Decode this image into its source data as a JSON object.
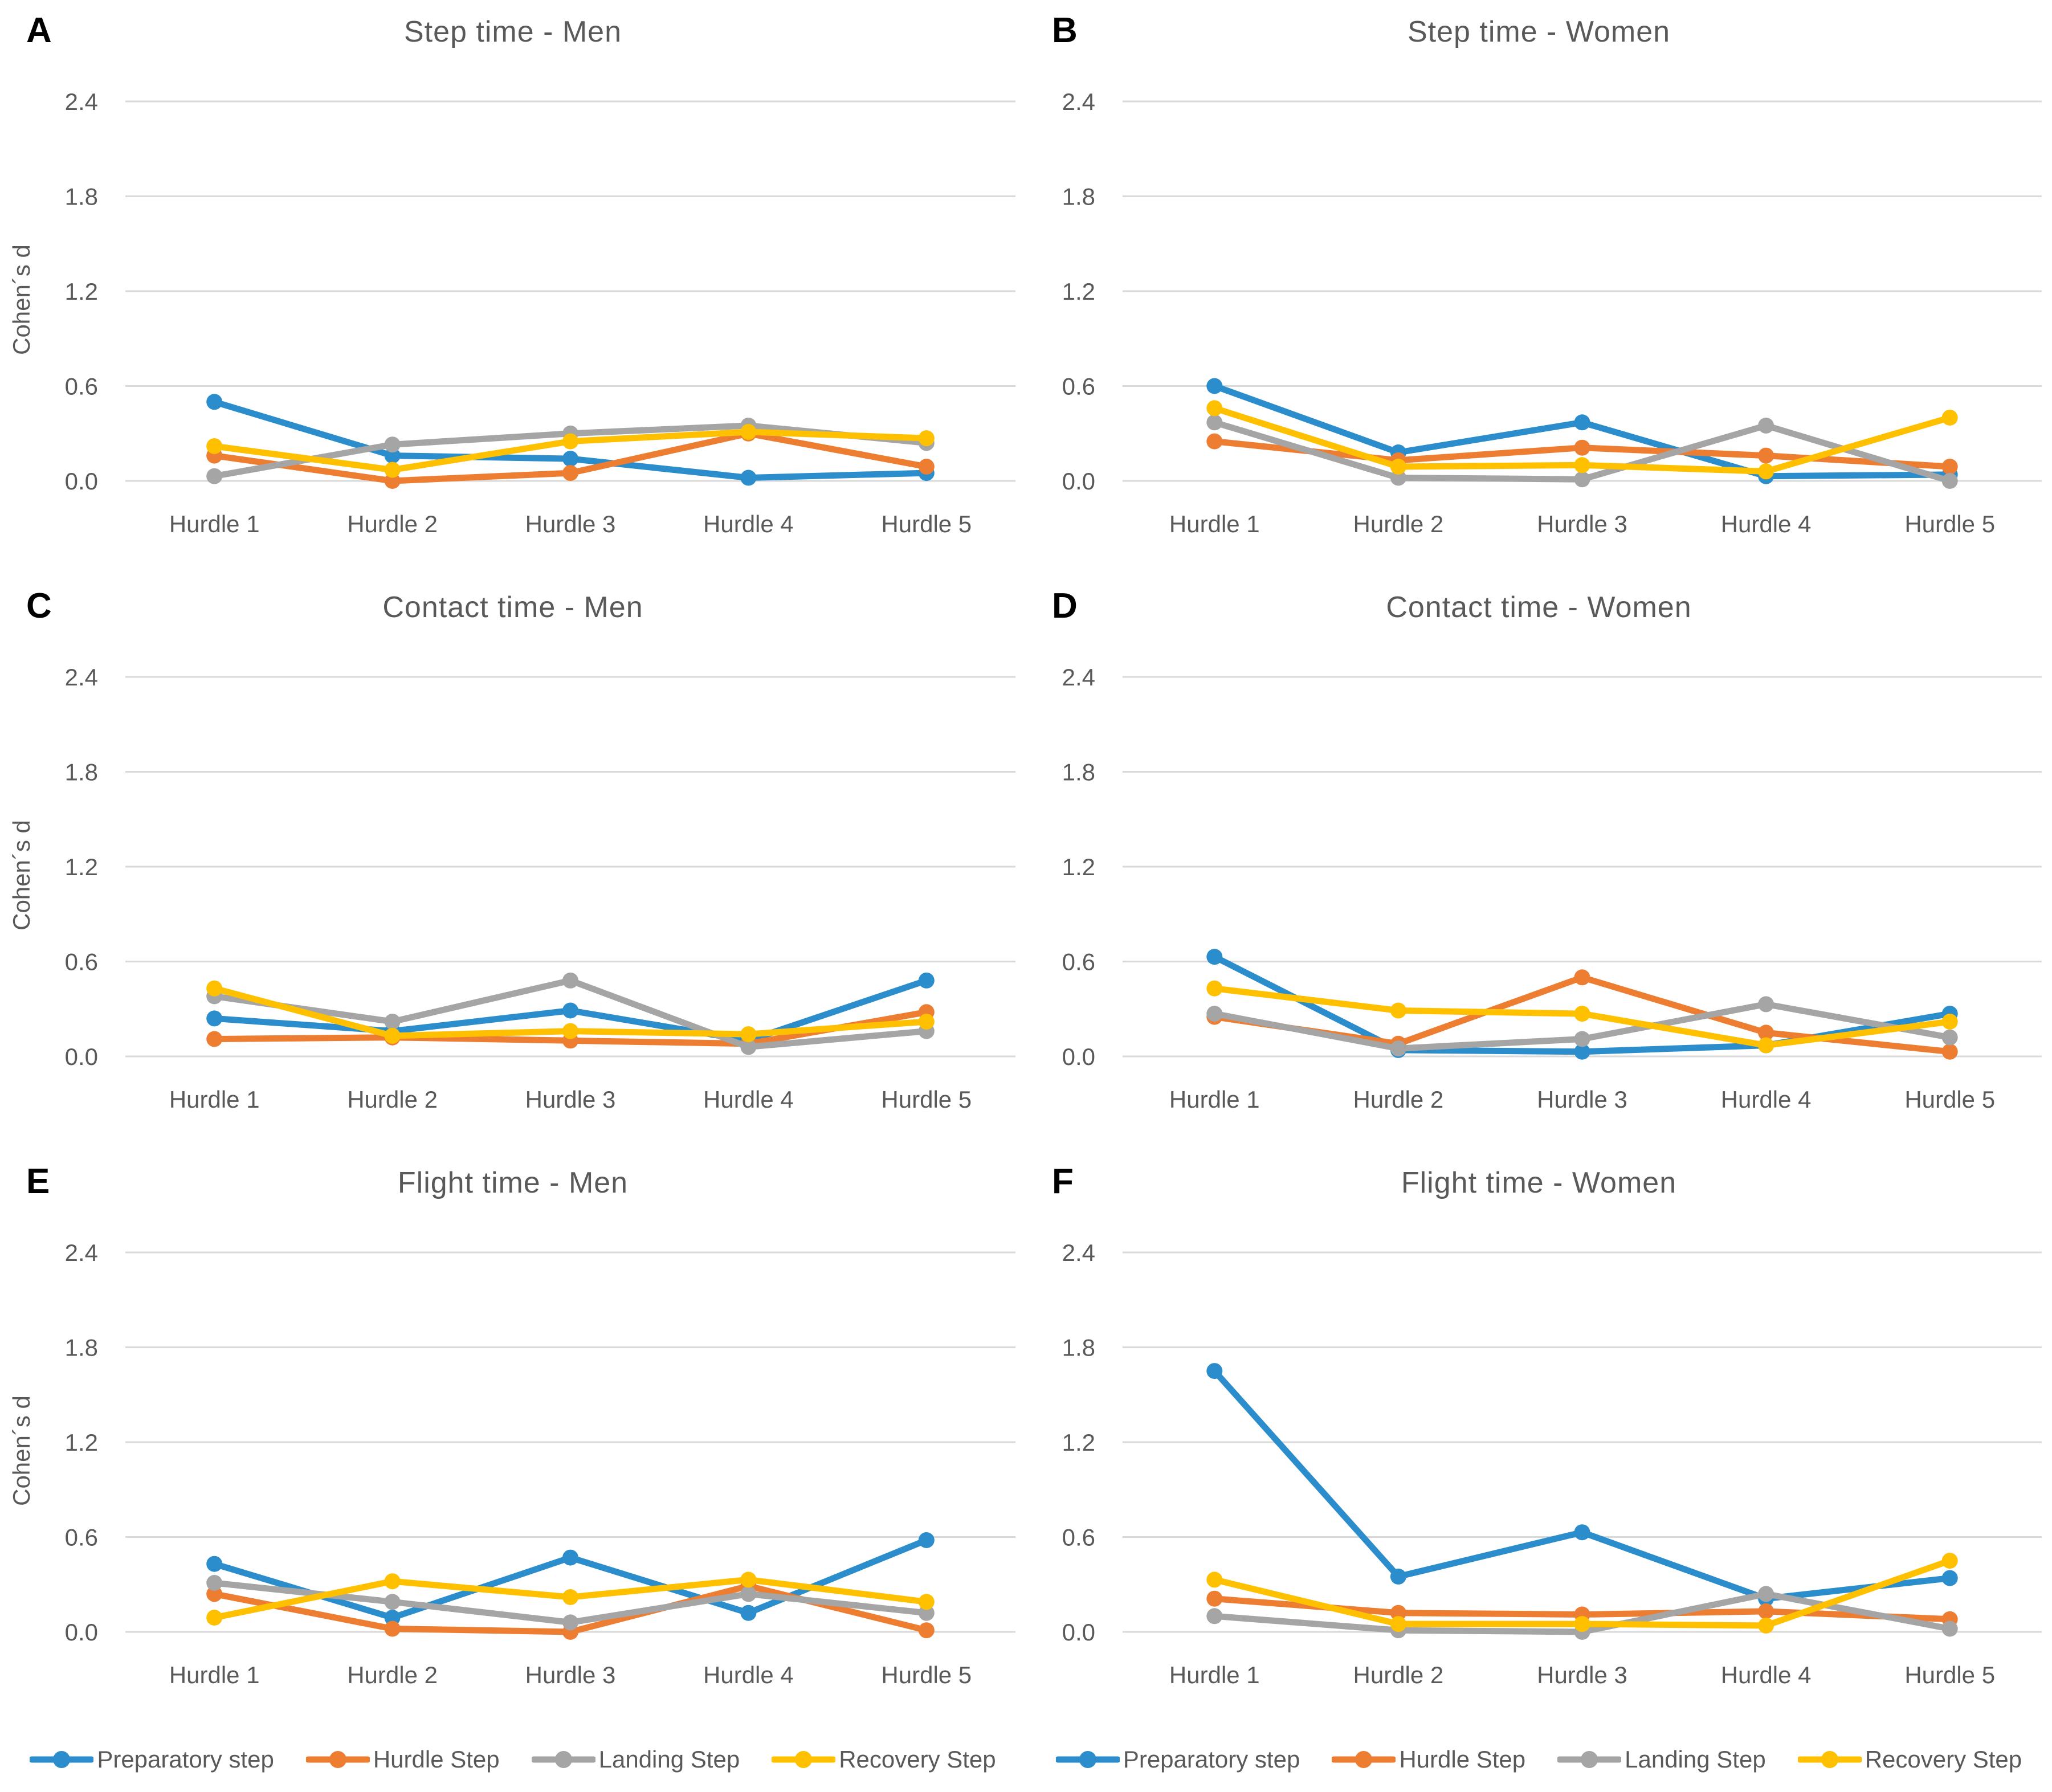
{
  "y_axis": {
    "title": "Cohen´s d",
    "ticks": [
      "2.4",
      "1.8",
      "1.2",
      "0.6",
      "0.0"
    ],
    "tick_values": [
      2.4,
      1.8,
      1.2,
      0.6,
      0.0
    ],
    "max": 2.4
  },
  "categories": [
    "Hurdle 1",
    "Hurdle 2",
    "Hurdle 3",
    "Hurdle 4",
    "Hurdle 5"
  ],
  "legend": {
    "labels": [
      "Preparatory step",
      "Hurdle Step",
      "Landing Step",
      "Recovery Step"
    ],
    "colors": [
      "#2B8DCB",
      "#ED7D31",
      "#A5A5A5",
      "#FFC000"
    ]
  },
  "colors": {
    "preparatory": "#2B8DCB",
    "hurdle": "#ED7D31",
    "landing": "#A5A5A5",
    "recovery": "#FFC000",
    "gridline": "#D9D9D9",
    "text": "#595959",
    "letter": "#000000"
  },
  "chart_data": [
    {
      "type": "line",
      "letter": "A",
      "title": "Step time - Men",
      "ylabel": "Cohen´s d",
      "ylim": [
        0,
        2.4
      ],
      "grid": true,
      "legend_position": "bottom",
      "categories": [
        "Hurdle 1",
        "Hurdle 2",
        "Hurdle 3",
        "Hurdle 4",
        "Hurdle 5"
      ],
      "series": [
        {
          "name": "Preparatory step",
          "color": "#2B8DCB",
          "values": [
            0.5,
            0.16,
            0.14,
            0.02,
            0.05
          ]
        },
        {
          "name": "Hurdle Step",
          "color": "#ED7D31",
          "values": [
            0.16,
            0.0,
            0.05,
            0.3,
            0.09
          ]
        },
        {
          "name": "Landing Step",
          "color": "#A5A5A5",
          "values": [
            0.03,
            0.23,
            0.3,
            0.35,
            0.24
          ]
        },
        {
          "name": "Recovery Step",
          "color": "#FFC000",
          "values": [
            0.22,
            0.07,
            0.25,
            0.31,
            0.27
          ]
        }
      ]
    },
    {
      "type": "line",
      "letter": "B",
      "title": "Step time - Women",
      "ylabel": "Cohen´s d",
      "ylim": [
        0,
        2.4
      ],
      "grid": true,
      "legend_position": "bottom",
      "categories": [
        "Hurdle 1",
        "Hurdle 2",
        "Hurdle 3",
        "Hurdle 4",
        "Hurdle 5"
      ],
      "series": [
        {
          "name": "Preparatory step",
          "color": "#2B8DCB",
          "values": [
            0.6,
            0.18,
            0.37,
            0.03,
            0.04
          ]
        },
        {
          "name": "Hurdle Step",
          "color": "#ED7D31",
          "values": [
            0.25,
            0.13,
            0.21,
            0.16,
            0.09
          ]
        },
        {
          "name": "Landing Step",
          "color": "#A5A5A5",
          "values": [
            0.37,
            0.02,
            0.01,
            0.35,
            0.0
          ]
        },
        {
          "name": "Recovery Step",
          "color": "#FFC000",
          "values": [
            0.46,
            0.09,
            0.1,
            0.06,
            0.4
          ]
        }
      ]
    },
    {
      "type": "line",
      "letter": "C",
      "title": "Contact time - Men",
      "ylabel": "Cohen´s d",
      "ylim": [
        0,
        2.4
      ],
      "grid": true,
      "legend_position": "bottom",
      "categories": [
        "Hurdle 1",
        "Hurdle 2",
        "Hurdle 3",
        "Hurdle 4",
        "Hurdle 5"
      ],
      "series": [
        {
          "name": "Preparatory step",
          "color": "#2B8DCB",
          "values": [
            0.24,
            0.16,
            0.29,
            0.1,
            0.48
          ]
        },
        {
          "name": "Hurdle Step",
          "color": "#ED7D31",
          "values": [
            0.11,
            0.12,
            0.1,
            0.08,
            0.28
          ]
        },
        {
          "name": "Landing Step",
          "color": "#A5A5A5",
          "values": [
            0.38,
            0.22,
            0.48,
            0.06,
            0.16
          ]
        },
        {
          "name": "Recovery Step",
          "color": "#FFC000",
          "values": [
            0.43,
            0.13,
            0.16,
            0.14,
            0.22
          ]
        }
      ]
    },
    {
      "type": "line",
      "letter": "D",
      "title": "Contact time - Women",
      "ylabel": "Cohen´s d",
      "ylim": [
        0,
        2.4
      ],
      "grid": true,
      "legend_position": "bottom",
      "categories": [
        "Hurdle 1",
        "Hurdle 2",
        "Hurdle 3",
        "Hurdle 4",
        "Hurdle 5"
      ],
      "series": [
        {
          "name": "Preparatory step",
          "color": "#2B8DCB",
          "values": [
            0.63,
            0.04,
            0.03,
            0.07,
            0.27
          ]
        },
        {
          "name": "Hurdle Step",
          "color": "#ED7D31",
          "values": [
            0.25,
            0.08,
            0.5,
            0.15,
            0.03
          ]
        },
        {
          "name": "Landing Step",
          "color": "#A5A5A5",
          "values": [
            0.27,
            0.05,
            0.11,
            0.33,
            0.12
          ]
        },
        {
          "name": "Recovery Step",
          "color": "#FFC000",
          "values": [
            0.43,
            0.29,
            0.27,
            0.07,
            0.22
          ]
        }
      ]
    },
    {
      "type": "line",
      "letter": "E",
      "title": "Flight time - Men",
      "ylabel": "Cohen´s d",
      "ylim": [
        0,
        2.4
      ],
      "grid": true,
      "legend_position": "bottom",
      "categories": [
        "Hurdle 1",
        "Hurdle 2",
        "Hurdle 3",
        "Hurdle 4",
        "Hurdle 5"
      ],
      "series": [
        {
          "name": "Preparatory step",
          "color": "#2B8DCB",
          "values": [
            0.43,
            0.09,
            0.47,
            0.12,
            0.58
          ]
        },
        {
          "name": "Hurdle Step",
          "color": "#ED7D31",
          "values": [
            0.24,
            0.02,
            0.0,
            0.29,
            0.01
          ]
        },
        {
          "name": "Landing Step",
          "color": "#A5A5A5",
          "values": [
            0.31,
            0.19,
            0.06,
            0.24,
            0.12
          ]
        },
        {
          "name": "Recovery Step",
          "color": "#FFC000",
          "values": [
            0.09,
            0.32,
            0.22,
            0.33,
            0.19
          ]
        }
      ]
    },
    {
      "type": "line",
      "letter": "F",
      "title": "Flight time - Women",
      "ylabel": "Cohen´s d",
      "ylim": [
        0,
        2.4
      ],
      "grid": true,
      "legend_position": "bottom",
      "categories": [
        "Hurdle 1",
        "Hurdle 2",
        "Hurdle 3",
        "Hurdle 4",
        "Hurdle 5"
      ],
      "series": [
        {
          "name": "Preparatory step",
          "color": "#2B8DCB",
          "values": [
            1.65,
            0.35,
            0.63,
            0.21,
            0.34
          ]
        },
        {
          "name": "Hurdle Step",
          "color": "#ED7D31",
          "values": [
            0.21,
            0.12,
            0.11,
            0.13,
            0.08
          ]
        },
        {
          "name": "Landing Step",
          "color": "#A5A5A5",
          "values": [
            0.1,
            0.01,
            0.0,
            0.24,
            0.02
          ]
        },
        {
          "name": "Recovery Step",
          "color": "#FFC000",
          "values": [
            0.33,
            0.05,
            0.05,
            0.04,
            0.45
          ]
        }
      ]
    }
  ]
}
